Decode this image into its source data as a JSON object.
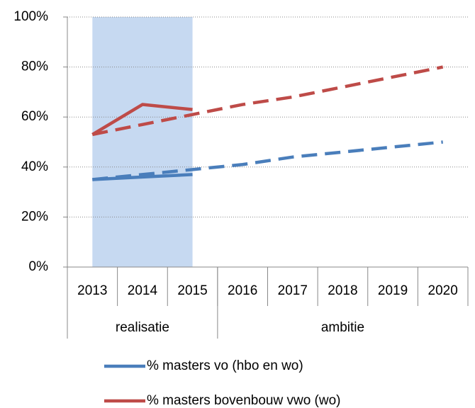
{
  "chart_data": {
    "type": "line",
    "categories": [
      "2013",
      "2014",
      "2015",
      "2016",
      "2017",
      "2018",
      "2019",
      "2020"
    ],
    "groups": [
      {
        "label": "realisatie",
        "count": 3
      },
      {
        "label": "ambitie",
        "count": 5
      }
    ],
    "highlight_color": "#c6d9f1",
    "series": [
      {
        "name": "% masters vo (hbo en wo)",
        "color": "#4a7ebb",
        "values": [
          35,
          36,
          37,
          null,
          null,
          null,
          null,
          null
        ],
        "target": [
          35,
          37,
          39,
          41,
          44,
          46,
          48,
          50
        ]
      },
      {
        "name": "% masters bovenbouw vwo (wo)",
        "color": "#be4b48",
        "values": [
          53,
          65,
          63,
          null,
          null,
          null,
          null,
          null
        ],
        "target": [
          53,
          57,
          61,
          65,
          68,
          72,
          76,
          80
        ]
      }
    ],
    "ylim": [
      0,
      100
    ],
    "yticks": [
      {
        "value": 0,
        "label": "0%"
      },
      {
        "value": 20,
        "label": "20%"
      },
      {
        "value": 40,
        "label": "40%"
      },
      {
        "value": 60,
        "label": "60%"
      },
      {
        "value": 80,
        "label": "80%"
      },
      {
        "value": 100,
        "label": "100%"
      }
    ],
    "grid": true
  }
}
